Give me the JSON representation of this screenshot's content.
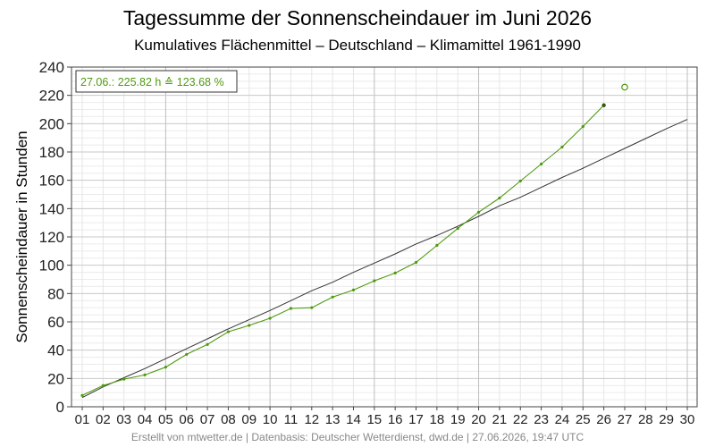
{
  "chart_data": {
    "type": "line",
    "title": "Tagessumme der Sonnenscheindauer im Juni 2026",
    "subtitle": "Kumulatives Flächenmittel – Deutschland – Klimamittel 1961-1990",
    "xlabel": "",
    "ylabel": "Sonnenscheindauer in Stunden",
    "categories": [
      "01",
      "02",
      "03",
      "04",
      "05",
      "06",
      "07",
      "08",
      "09",
      "10",
      "11",
      "12",
      "13",
      "14",
      "15",
      "16",
      "17",
      "18",
      "19",
      "20",
      "21",
      "22",
      "23",
      "24",
      "25",
      "26",
      "27",
      "28",
      "29",
      "30"
    ],
    "ylim": [
      0,
      240
    ],
    "yticks": [
      0,
      20,
      40,
      60,
      80,
      100,
      120,
      140,
      160,
      180,
      200,
      220,
      240
    ],
    "grid": true,
    "series": [
      {
        "color": "#4f9a0f",
        "values": [
          8,
          15,
          19.5,
          22.5,
          28,
          37,
          44,
          53,
          57.5,
          62.5,
          69.5,
          70,
          77.5,
          82.5,
          89,
          94.5,
          102,
          114,
          126,
          137.5,
          147.5,
          159.5,
          171.5,
          183.5,
          198,
          213,
          null,
          null,
          null,
          null
        ],
        "forecast": {
          "x": "27",
          "value": 225.82
        }
      },
      {
        "color": "#333333",
        "values": [
          6.5,
          14,
          20.5,
          27,
          34,
          41,
          48,
          55,
          61.5,
          68,
          75,
          82,
          88,
          95,
          101.5,
          108,
          115,
          121,
          127.5,
          134.5,
          142,
          148,
          155,
          162,
          168.5,
          175.5,
          182.5,
          189.5,
          196.5,
          203
        ]
      }
    ],
    "annotation": "27.06.: 225.82 h ≙ 123.68 %",
    "annotation_color": "#4f9a0f",
    "footer": "Erstellt von mtwetter.de | Datenbasis: Deutscher Wetterdienst, dwd.de | 27.06.2026, 19:47 UTC"
  }
}
